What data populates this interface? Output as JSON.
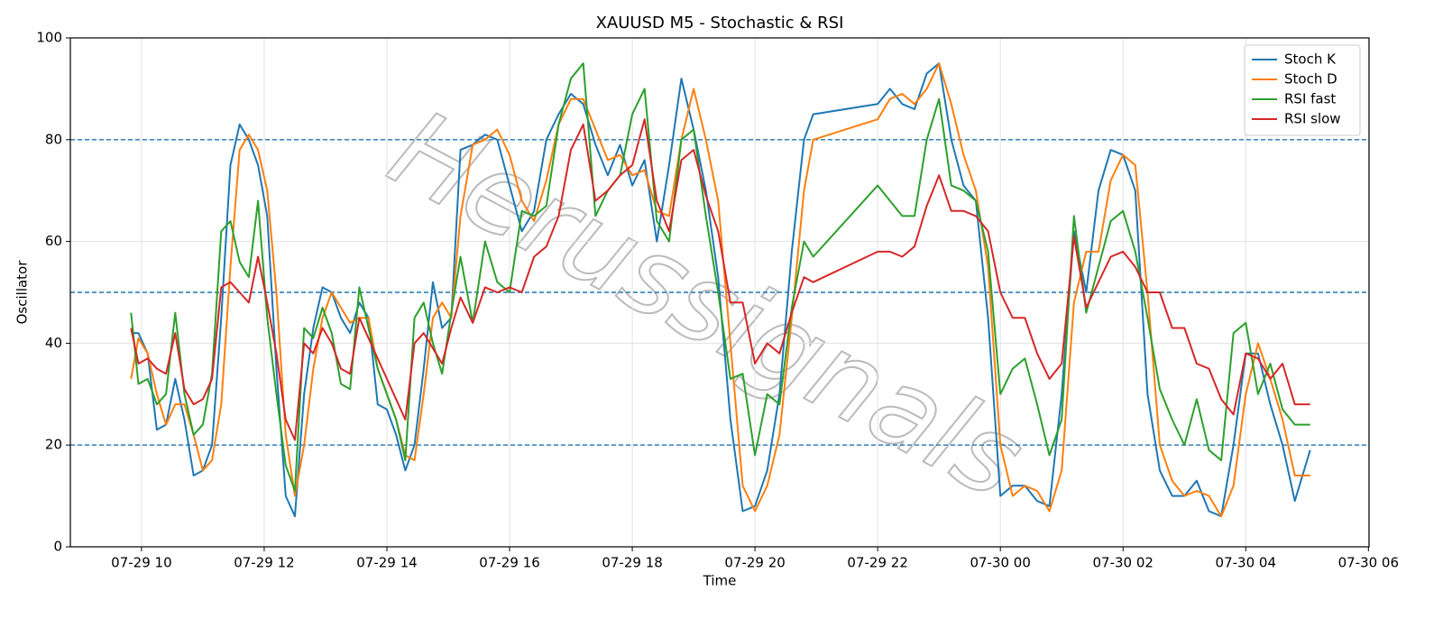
{
  "chart_data": {
    "type": "line",
    "title": "XAUUSD M5 - Stochastic & RSI",
    "x_label": "Time",
    "y_label": "Oscillator",
    "watermark": "Herussignals",
    "x": [
      9.83,
      9.95,
      10.1,
      10.25,
      10.4,
      10.55,
      10.7,
      10.85,
      11.0,
      11.15,
      11.3,
      11.45,
      11.6,
      11.75,
      11.9,
      12.05,
      12.2,
      12.35,
      12.5,
      12.65,
      12.8,
      12.95,
      13.1,
      13.25,
      13.4,
      13.55,
      13.7,
      13.85,
      14.0,
      14.15,
      14.3,
      14.45,
      14.6,
      14.75,
      14.9,
      15.05,
      15.2,
      15.4,
      15.6,
      15.8,
      16.0,
      16.2,
      16.4,
      16.6,
      16.8,
      17.0,
      17.2,
      17.4,
      17.6,
      17.8,
      18.0,
      18.2,
      18.4,
      18.6,
      18.8,
      19.0,
      19.2,
      19.4,
      19.6,
      19.8,
      20.0,
      20.2,
      20.4,
      20.6,
      20.8,
      20.95,
      22.0,
      22.2,
      22.4,
      22.6,
      22.8,
      23.0,
      23.2,
      23.4,
      23.6,
      23.8,
      24.0,
      24.2,
      24.4,
      24.6,
      24.8,
      25.0,
      25.2,
      25.4,
      25.6,
      25.8,
      26.0,
      26.2,
      26.4,
      26.6,
      26.8,
      27.0,
      27.2,
      27.4,
      27.6,
      27.8,
      28.0,
      28.2,
      28.4,
      28.6,
      28.8,
      29.05
    ],
    "series": [
      {
        "name": "Stoch K",
        "color": "#1f77b4",
        "values": [
          42,
          42,
          38,
          23,
          24,
          33,
          25,
          14,
          15,
          20,
          45,
          75,
          83,
          80,
          75,
          65,
          35,
          10,
          6,
          30,
          43,
          51,
          50,
          45,
          42,
          48,
          45,
          28,
          27,
          22,
          15,
          20,
          35,
          52,
          43,
          45,
          78,
          79,
          81,
          80,
          71,
          62,
          66,
          80,
          85,
          89,
          87,
          79,
          73,
          79,
          71,
          76,
          60,
          75,
          92,
          82,
          70,
          53,
          25,
          7,
          8,
          15,
          30,
          58,
          80,
          85,
          87,
          90,
          87,
          86,
          93,
          95,
          80,
          71,
          68,
          45,
          10,
          12,
          12,
          9,
          8,
          30,
          62,
          50,
          70,
          78,
          77,
          70,
          30,
          15,
          10,
          10,
          13,
          7,
          6,
          20,
          38,
          38,
          28,
          20,
          9,
          19
        ]
      },
      {
        "name": "Stoch D",
        "color": "#ff7f0e",
        "values": [
          33,
          41,
          38,
          30,
          24,
          28,
          28,
          22,
          15,
          17,
          28,
          55,
          78,
          81,
          78,
          70,
          50,
          22,
          10,
          20,
          35,
          45,
          50,
          47,
          44,
          45,
          45,
          35,
          30,
          25,
          18,
          17,
          30,
          45,
          48,
          45,
          65,
          79,
          80,
          82,
          77,
          68,
          64,
          72,
          83,
          88,
          88,
          82,
          76,
          77,
          73,
          74,
          66,
          65,
          80,
          90,
          80,
          68,
          40,
          12,
          7,
          12,
          22,
          45,
          70,
          80,
          84,
          88,
          89,
          87,
          90,
          95,
          87,
          77,
          70,
          55,
          20,
          10,
          12,
          11,
          7,
          15,
          48,
          58,
          58,
          72,
          77,
          75,
          50,
          20,
          13,
          10,
          11,
          10,
          6,
          12,
          30,
          40,
          33,
          25,
          14,
          14
        ]
      },
      {
        "name": "RSI fast",
        "color": "#2ca02c",
        "values": [
          46,
          32,
          33,
          28,
          30,
          46,
          30,
          22,
          24,
          34,
          62,
          64,
          56,
          53,
          68,
          45,
          30,
          16,
          11,
          43,
          41,
          47,
          42,
          32,
          31,
          51,
          43,
          35,
          30,
          25,
          17,
          45,
          48,
          40,
          34,
          46,
          57,
          44,
          60,
          52,
          50,
          66,
          65,
          67,
          83,
          92,
          95,
          65,
          70,
          73,
          85,
          90,
          64,
          60,
          80,
          82,
          65,
          50,
          33,
          34,
          18,
          30,
          28,
          47,
          60,
          57,
          71,
          68,
          65,
          65,
          80,
          88,
          71,
          70,
          68,
          58,
          30,
          35,
          37,
          28,
          18,
          25,
          65,
          46,
          55,
          64,
          66,
          58,
          45,
          31,
          25,
          20,
          29,
          19,
          17,
          42,
          44,
          30,
          36,
          27,
          24,
          24
        ]
      },
      {
        "name": "RSI slow",
        "color": "#d62728",
        "values": [
          43,
          36,
          37,
          35,
          34,
          42,
          31,
          28,
          29,
          33,
          51,
          52,
          50,
          48,
          57,
          48,
          38,
          25,
          21,
          40,
          38,
          43,
          40,
          35,
          34,
          45,
          41,
          37,
          33,
          29,
          25,
          40,
          42,
          39,
          36,
          43,
          49,
          44,
          51,
          50,
          51,
          50,
          57,
          59,
          65,
          78,
          83,
          68,
          70,
          73,
          75,
          84,
          68,
          62,
          76,
          78,
          69,
          62,
          48,
          48,
          36,
          40,
          38,
          46,
          53,
          52,
          58,
          58,
          57,
          59,
          67,
          73,
          66,
          66,
          65,
          62,
          50,
          45,
          45,
          38,
          33,
          36,
          61,
          47,
          52,
          57,
          58,
          55,
          50,
          50,
          43,
          43,
          36,
          35,
          29,
          26,
          38,
          37,
          33,
          36,
          28,
          28
        ]
      }
    ],
    "xlim": [
      8.84,
      30.01
    ],
    "xticks": [
      {
        "value": 10,
        "label": "07-29 10"
      },
      {
        "value": 12,
        "label": "07-29 12"
      },
      {
        "value": 14,
        "label": "07-29 14"
      },
      {
        "value": 16,
        "label": "07-29 16"
      },
      {
        "value": 18,
        "label": "07-29 18"
      },
      {
        "value": 20,
        "label": "07-29 20"
      },
      {
        "value": 22,
        "label": "07-29 22"
      },
      {
        "value": 24,
        "label": "07-30 00"
      },
      {
        "value": 26,
        "label": "07-30 02"
      },
      {
        "value": 28,
        "label": "07-30 04"
      },
      {
        "value": 30,
        "label": "07-30 06"
      }
    ],
    "ylim": [
      0,
      100
    ],
    "yticks": [
      0,
      20,
      40,
      60,
      80,
      100
    ],
    "hlines": [
      20,
      50,
      80
    ],
    "hline_color": "#1f77b4",
    "grid": true,
    "legend": "upper right"
  }
}
